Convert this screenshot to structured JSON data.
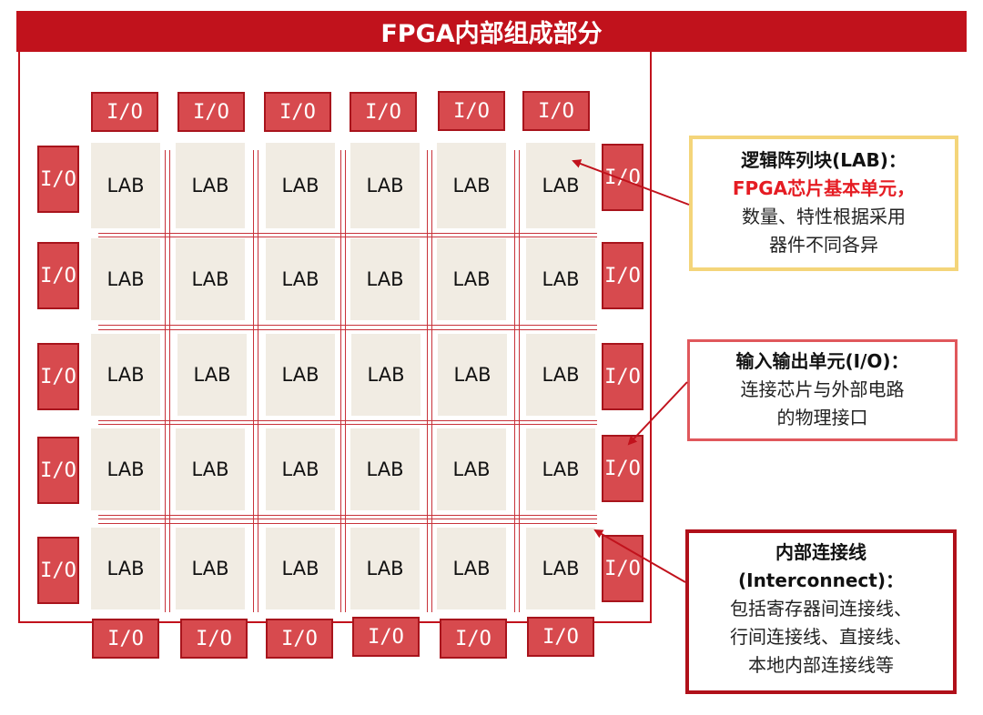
{
  "title": "FPGA内部组成部分",
  "io_label": "I/O",
  "lab_label": "LAB",
  "callouts": {
    "lab": {
      "head": "逻辑阵列块(LAB)：",
      "emph": "FPGA芯片基本单元，",
      "lines": [
        "数量、特性根据采用",
        "器件不同各异"
      ]
    },
    "io": {
      "head": "输入输出单元(I/O)：",
      "lines": [
        "连接芯片与外部电路",
        "的物理接口"
      ]
    },
    "interconnect": {
      "head": "内部连接线",
      "head2": "(Interconnect)：",
      "lines": [
        "包括寄存器间连接线、",
        "行间连接线、直接线、",
        "本地内部连接线等"
      ]
    }
  },
  "colors": {
    "primary_red": "#c1121c",
    "io_fill": "#d74a4e",
    "lab_fill": "#f1ece3",
    "lab_callout_border": "#f4d57a",
    "io_callout_border": "#e0585c",
    "interconnect_callout_border": "#b0101a"
  }
}
